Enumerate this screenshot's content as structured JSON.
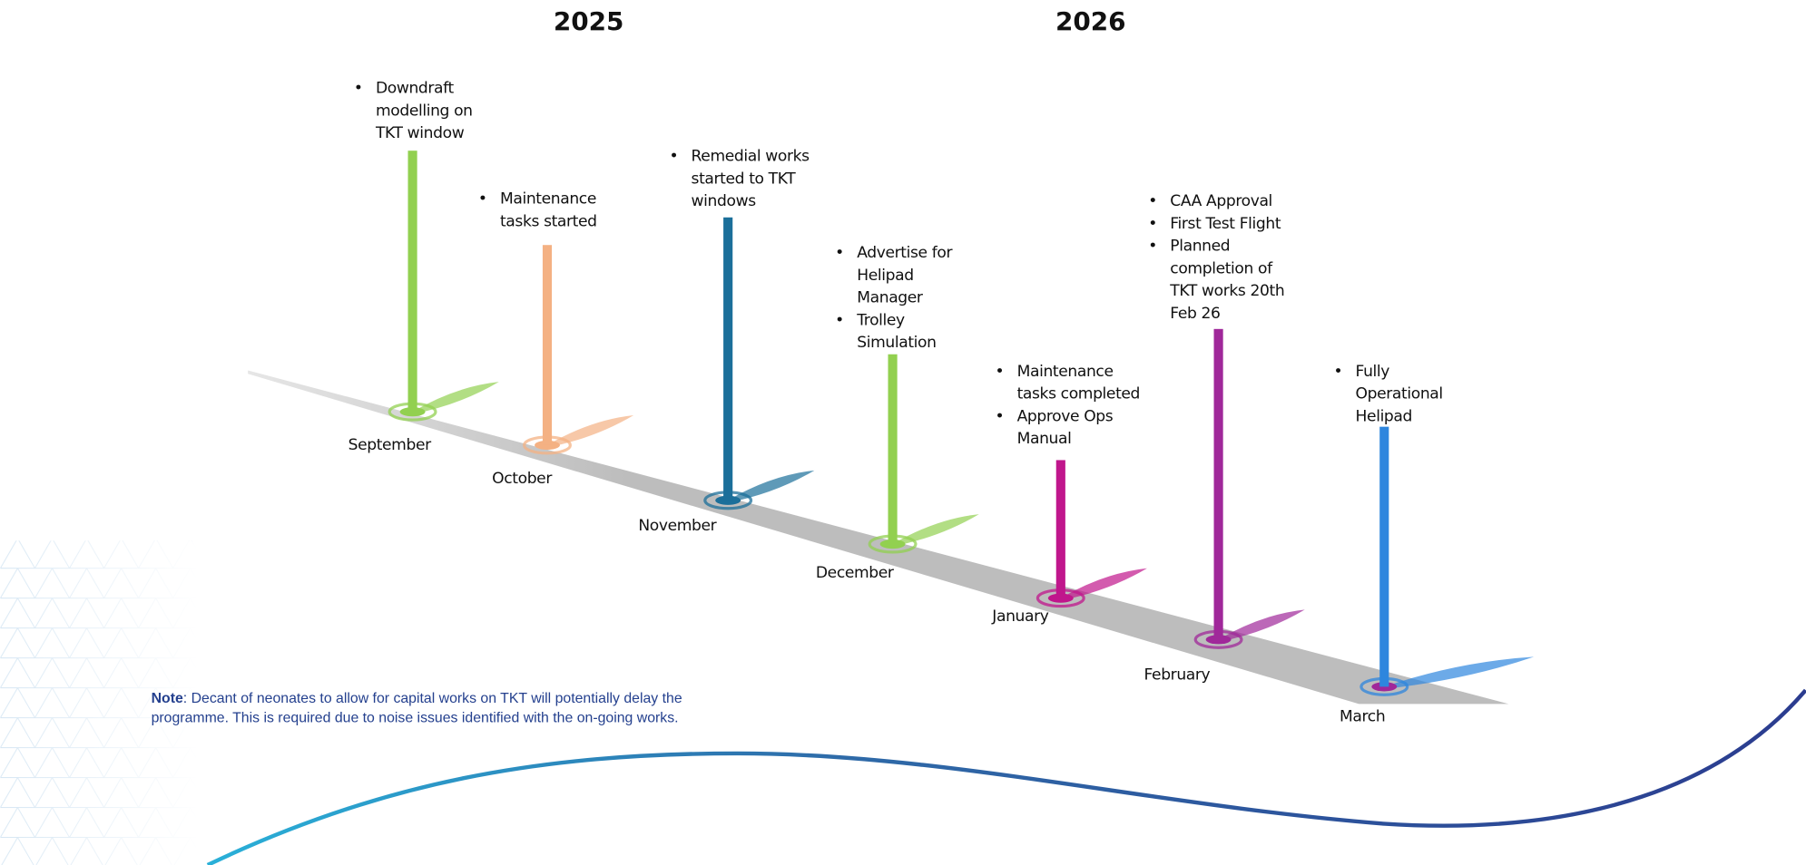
{
  "years": [
    "2025",
    "2026"
  ],
  "milestones": [
    {
      "month": "September",
      "color": "#92d050",
      "items": [
        [
          "Downdraft",
          "modelling on",
          "TKT window"
        ]
      ]
    },
    {
      "month": "October",
      "color": "#f4b183",
      "items": [
        [
          "Maintenance",
          "tasks started"
        ]
      ]
    },
    {
      "month": "November",
      "color": "#1b6f9a",
      "items": [
        [
          "Remedial works",
          "started to TKT",
          "windows"
        ]
      ]
    },
    {
      "month": "December",
      "color": "#92d050",
      "items": [
        [
          "Advertise for",
          "Helipad",
          "Manager"
        ],
        [
          "Trolley",
          "Simulation"
        ]
      ]
    },
    {
      "month": "January",
      "color": "#c0168c",
      "items": [
        [
          "Maintenance",
          "tasks completed"
        ],
        [
          "Approve Ops",
          "Manual"
        ]
      ]
    },
    {
      "month": "February",
      "color": "#a0289a",
      "items": [
        [
          "CAA Approval"
        ],
        [
          "First Test Flight"
        ],
        [
          "Planned",
          "completion of",
          "TKT works 20th",
          "Feb 26"
        ]
      ]
    },
    {
      "month": "March",
      "color": "#2e86de",
      "items": [
        [
          "Fully",
          "Operational",
          "Helipad"
        ]
      ]
    }
  ],
  "note": {
    "label": "Note",
    "lines": [
      ": Decant of neonates to allow for capital works on TKT will potentially delay the",
      "programme. This is required due to noise issues identified with the on-going works."
    ]
  }
}
